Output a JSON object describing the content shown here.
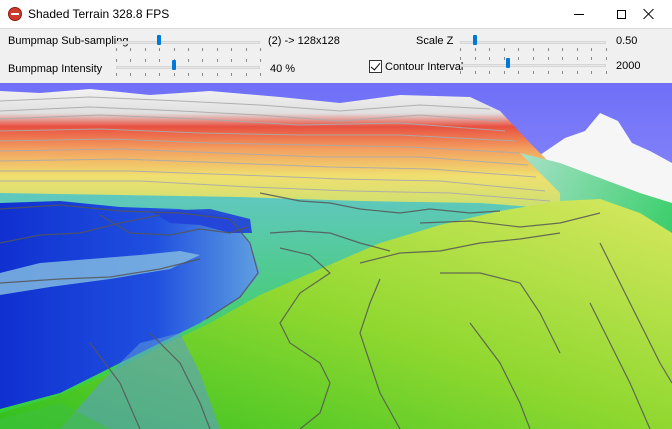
{
  "window": {
    "title": "Shaded Terrain 328.8 FPS",
    "icon": "app-icon",
    "controls": [
      "minimize-icon",
      "maximize-icon",
      "close-icon"
    ]
  },
  "controls": {
    "bumpmap_subsampling": {
      "label": "Bumpmap Sub-sampling",
      "value_text": "(2) -> 128x128",
      "position": 0.3
    },
    "bumpmap_intensity": {
      "label": "Bumpmap Intensity",
      "value_text": "40 %",
      "position": 0.4
    },
    "scale_z": {
      "label": "Scale Z",
      "value_text": "0.50",
      "position": 0.1
    },
    "contour_interval": {
      "label": "Contour Interval",
      "checked": true,
      "value_text": "2000",
      "position": 0.33
    }
  },
  "viewport": {
    "colors": {
      "sky": "#7a7aff",
      "snow": "#f4f4f4",
      "red": "#e85040",
      "yellow": "#f0e070",
      "green": "#40d020",
      "blue": "#1020c0",
      "contour": "#555555"
    }
  }
}
